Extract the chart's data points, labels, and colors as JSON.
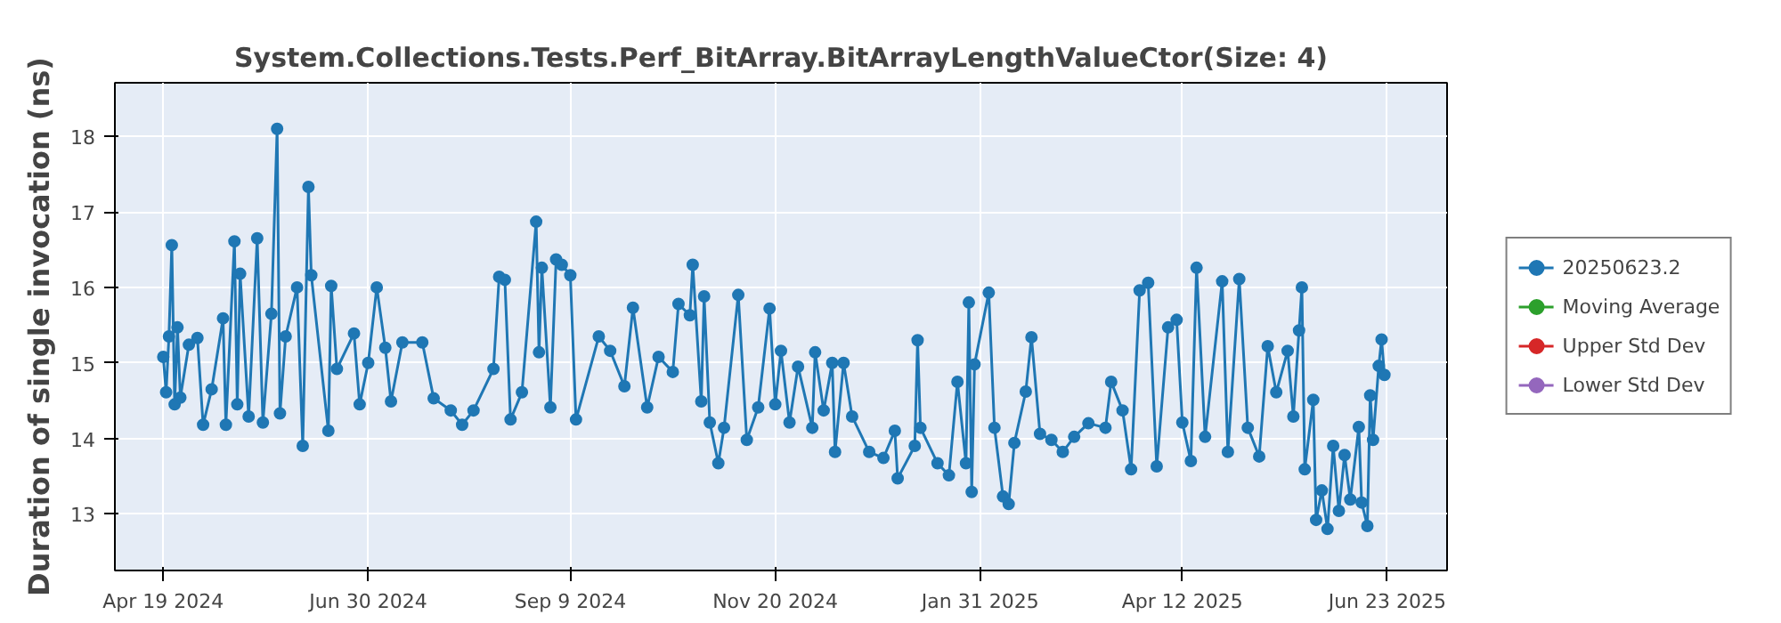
{
  "chart_data": {
    "type": "line",
    "title": "System.Collections.Tests.Perf_BitArray.BitArrayLengthValueCtor(Size: 4)",
    "ylabel": "Duration of single invocation (ns)",
    "x": [
      "2024-04-19",
      "2024-04-20",
      "2024-04-21",
      "2024-04-22",
      "2024-04-23",
      "2024-04-24",
      "2024-04-25",
      "2024-04-28",
      "2024-05-01",
      "2024-05-03",
      "2024-05-06",
      "2024-05-10",
      "2024-05-11",
      "2024-05-14",
      "2024-05-15",
      "2024-05-16",
      "2024-05-19",
      "2024-05-22",
      "2024-05-24",
      "2024-05-27",
      "2024-05-29",
      "2024-05-30",
      "2024-06-01",
      "2024-06-05",
      "2024-06-07",
      "2024-06-09",
      "2024-06-10",
      "2024-06-16",
      "2024-06-17",
      "2024-06-19",
      "2024-06-25",
      "2024-06-27",
      "2024-06-30",
      "2024-07-03",
      "2024-07-06",
      "2024-07-08",
      "2024-07-12",
      "2024-07-19",
      "2024-07-23",
      "2024-07-29",
      "2024-08-02",
      "2024-08-06",
      "2024-08-13",
      "2024-08-15",
      "2024-08-17",
      "2024-08-19",
      "2024-08-23",
      "2024-08-28",
      "2024-08-29",
      "2024-08-30",
      "2024-09-02",
      "2024-09-04",
      "2024-09-06",
      "2024-09-09",
      "2024-09-11",
      "2024-09-19",
      "2024-09-23",
      "2024-09-28",
      "2024-10-01",
      "2024-10-06",
      "2024-10-10",
      "2024-10-15",
      "2024-10-17",
      "2024-10-21",
      "2024-10-22",
      "2024-10-25",
      "2024-10-26",
      "2024-10-28",
      "2024-10-31",
      "2024-11-02",
      "2024-11-07",
      "2024-11-10",
      "2024-11-14",
      "2024-11-18",
      "2024-11-20",
      "2024-11-22",
      "2024-11-25",
      "2024-11-28",
      "2024-12-03",
      "2024-12-04",
      "2024-12-07",
      "2024-12-10",
      "2024-12-11",
      "2024-12-14",
      "2024-12-17",
      "2024-12-23",
      "2024-12-28",
      "2025-01-01",
      "2025-01-02",
      "2025-01-08",
      "2025-01-09",
      "2025-01-10",
      "2025-01-16",
      "2025-01-20",
      "2025-01-23",
      "2025-01-26",
      "2025-01-27",
      "2025-01-28",
      "2025-01-29",
      "2025-02-03",
      "2025-02-05",
      "2025-02-08",
      "2025-02-10",
      "2025-02-12",
      "2025-02-16",
      "2025-02-18",
      "2025-02-21",
      "2025-02-25",
      "2025-03-01",
      "2025-03-05",
      "2025-03-10",
      "2025-03-16",
      "2025-03-18",
      "2025-03-22",
      "2025-03-25",
      "2025-03-28",
      "2025-03-31",
      "2025-04-03",
      "2025-04-07",
      "2025-04-10",
      "2025-04-12",
      "2025-04-15",
      "2025-04-17",
      "2025-04-20",
      "2025-04-26",
      "2025-04-28",
      "2025-05-02",
      "2025-05-05",
      "2025-05-09",
      "2025-05-12",
      "2025-05-15",
      "2025-05-19",
      "2025-05-21",
      "2025-05-23",
      "2025-05-24",
      "2025-05-25",
      "2025-05-28",
      "2025-05-29",
      "2025-05-31",
      "2025-06-02",
      "2025-06-04",
      "2025-06-06",
      "2025-06-08",
      "2025-06-10",
      "2025-06-13",
      "2025-06-14",
      "2025-06-16",
      "2025-06-17",
      "2025-06-18",
      "2025-06-20",
      "2025-06-21",
      "2025-06-22"
    ],
    "series": [
      {
        "name": "20250623.2",
        "color": "#1f77b4",
        "values": [
          15.08,
          14.61,
          15.35,
          16.56,
          14.45,
          15.47,
          14.54,
          15.24,
          15.33,
          14.18,
          14.65,
          15.59,
          14.18,
          16.61,
          14.45,
          16.18,
          14.29,
          16.65,
          14.21,
          15.65,
          18.1,
          14.33,
          15.35,
          16.0,
          13.9,
          17.33,
          16.16,
          14.1,
          16.02,
          14.92,
          15.39,
          14.45,
          15.0,
          16.0,
          15.2,
          14.49,
          15.27,
          15.27,
          14.53,
          14.37,
          14.18,
          14.37,
          14.92,
          16.14,
          16.1,
          14.25,
          14.61,
          16.87,
          15.14,
          16.26,
          14.41,
          16.37,
          16.3,
          16.16,
          14.25,
          15.35,
          15.16,
          14.69,
          15.73,
          14.41,
          15.08,
          14.88,
          15.78,
          15.63,
          16.3,
          14.49,
          15.88,
          14.21,
          13.67,
          14.14,
          15.9,
          13.98,
          14.41,
          15.72,
          14.45,
          15.16,
          14.21,
          14.95,
          14.14,
          15.14,
          14.37,
          15.0,
          13.82,
          15.0,
          14.29,
          13.82,
          13.74,
          14.1,
          13.47,
          13.9,
          15.3,
          14.14,
          13.67,
          13.51,
          14.75,
          13.67,
          15.8,
          13.29,
          14.98,
          15.93,
          14.14,
          13.23,
          13.13,
          13.94,
          14.62,
          15.34,
          14.06,
          13.98,
          13.82,
          14.02,
          14.2,
          14.14,
          14.75,
          14.37,
          13.59,
          15.96,
          16.06,
          13.63,
          15.47,
          15.57,
          14.21,
          13.7,
          16.26,
          14.02,
          16.08,
          13.82,
          16.11,
          14.14,
          13.76,
          15.22,
          14.61,
          15.16,
          14.29,
          15.43,
          16.0,
          13.59,
          14.51,
          12.92,
          13.31,
          12.8,
          13.9,
          13.04,
          13.78,
          13.19,
          14.15,
          13.15,
          12.84,
          14.57,
          13.98,
          14.96,
          15.31,
          14.84
        ]
      },
      {
        "name": "Moving Average",
        "color": "#2ca02c",
        "values": [
          null,
          null,
          null,
          null,
          null,
          null,
          null,
          null,
          null,
          null,
          null,
          null,
          null,
          null,
          null,
          null,
          null,
          null,
          null,
          null,
          null,
          null,
          null,
          null,
          null,
          null,
          null,
          null,
          null,
          null,
          null,
          null,
          null,
          null,
          null,
          null,
          null,
          null,
          null,
          null,
          null,
          null,
          null,
          null,
          null,
          null,
          null,
          null,
          null,
          null,
          null,
          null,
          null,
          null,
          null,
          null,
          null,
          null,
          null,
          null,
          null,
          null,
          null,
          null,
          null,
          null,
          null,
          null,
          null,
          null,
          null,
          null,
          null,
          null,
          null,
          null,
          null,
          null,
          null,
          null,
          null,
          null,
          null,
          null,
          null,
          null,
          null,
          null,
          null,
          null,
          null,
          null,
          null,
          null,
          null,
          null,
          null,
          null,
          null,
          null,
          null,
          null,
          null,
          null,
          null,
          null,
          null,
          null,
          null,
          null,
          null,
          null,
          null,
          null,
          null,
          null,
          null,
          null,
          null,
          null,
          null,
          null,
          null,
          null,
          null,
          null,
          null,
          null,
          null,
          null,
          null,
          null,
          null,
          null,
          null,
          null,
          null,
          null,
          null,
          null,
          null,
          null,
          null,
          null,
          null,
          null,
          null,
          null,
          null,
          null,
          null,
          null
        ]
      },
      {
        "name": "Upper Std Dev",
        "color": "#d62728",
        "values": [
          null,
          null,
          null,
          null,
          null,
          null,
          null,
          null,
          null,
          null,
          null,
          null,
          null,
          null,
          null,
          null,
          null,
          null,
          null,
          null,
          null,
          null,
          null,
          null,
          null,
          null,
          null,
          null,
          null,
          null,
          null,
          null,
          null,
          null,
          null,
          null,
          null,
          null,
          null,
          null,
          null,
          null,
          null,
          null,
          null,
          null,
          null,
          null,
          null,
          null,
          null,
          null,
          null,
          null,
          null,
          null,
          null,
          null,
          null,
          null,
          null,
          null,
          null,
          null,
          null,
          null,
          null,
          null,
          null,
          null,
          null,
          null,
          null,
          null,
          null,
          null,
          null,
          null,
          null,
          null,
          null,
          null,
          null,
          null,
          null,
          null,
          null,
          null,
          null,
          null,
          null,
          null,
          null,
          null,
          null,
          null,
          null,
          null,
          null,
          null,
          null,
          null,
          null,
          null,
          null,
          null,
          null,
          null,
          null,
          null,
          null,
          null,
          null,
          null,
          null,
          null,
          null,
          null,
          null,
          null,
          null,
          null,
          null,
          null,
          null,
          null,
          null,
          null,
          null,
          null,
          null,
          null,
          null,
          null,
          null,
          null,
          null,
          null,
          null,
          null,
          null,
          null,
          null,
          null,
          null,
          null,
          null,
          null,
          null,
          null,
          null,
          null
        ]
      },
      {
        "name": "Lower Std Dev",
        "color": "#9467bd",
        "values": [
          null,
          null,
          null,
          null,
          null,
          null,
          null,
          null,
          null,
          null,
          null,
          null,
          null,
          null,
          null,
          null,
          null,
          null,
          null,
          null,
          null,
          null,
          null,
          null,
          null,
          null,
          null,
          null,
          null,
          null,
          null,
          null,
          null,
          null,
          null,
          null,
          null,
          null,
          null,
          null,
          null,
          null,
          null,
          null,
          null,
          null,
          null,
          null,
          null,
          null,
          null,
          null,
          null,
          null,
          null,
          null,
          null,
          null,
          null,
          null,
          null,
          null,
          null,
          null,
          null,
          null,
          null,
          null,
          null,
          null,
          null,
          null,
          null,
          null,
          null,
          null,
          null,
          null,
          null,
          null,
          null,
          null,
          null,
          null,
          null,
          null,
          null,
          null,
          null,
          null,
          null,
          null,
          null,
          null,
          null,
          null,
          null,
          null,
          null,
          null,
          null,
          null,
          null,
          null,
          null,
          null,
          null,
          null,
          null,
          null,
          null,
          null,
          null,
          null,
          null,
          null,
          null,
          null,
          null,
          null,
          null,
          null,
          null,
          null,
          null,
          null,
          null,
          null,
          null,
          null,
          null,
          null,
          null,
          null,
          null,
          null,
          null,
          null,
          null,
          null,
          null,
          null,
          null,
          null,
          null,
          null,
          null,
          null,
          null,
          null,
          null,
          null
        ]
      }
    ],
    "xlim": [
      "2024-04-02",
      "2025-07-14"
    ],
    "xticks": [
      {
        "value": "2024-04-19",
        "label": "Apr 19 2024"
      },
      {
        "value": "2024-06-30",
        "label": "Jun 30 2024"
      },
      {
        "value": "2024-09-09",
        "label": "Sep 9 2024"
      },
      {
        "value": "2024-11-20",
        "label": "Nov 20 2024"
      },
      {
        "value": "2025-01-31",
        "label": "Jan 31 2025"
      },
      {
        "value": "2025-04-12",
        "label": "Apr 12 2025"
      },
      {
        "value": "2025-06-23",
        "label": "Jun 23 2025"
      }
    ],
    "ylim": [
      12.25,
      18.71
    ],
    "yticks": [
      13,
      14,
      15,
      16,
      17,
      18
    ],
    "grid": true,
    "legend": "right",
    "marker": "circle",
    "line_style": "solid"
  }
}
